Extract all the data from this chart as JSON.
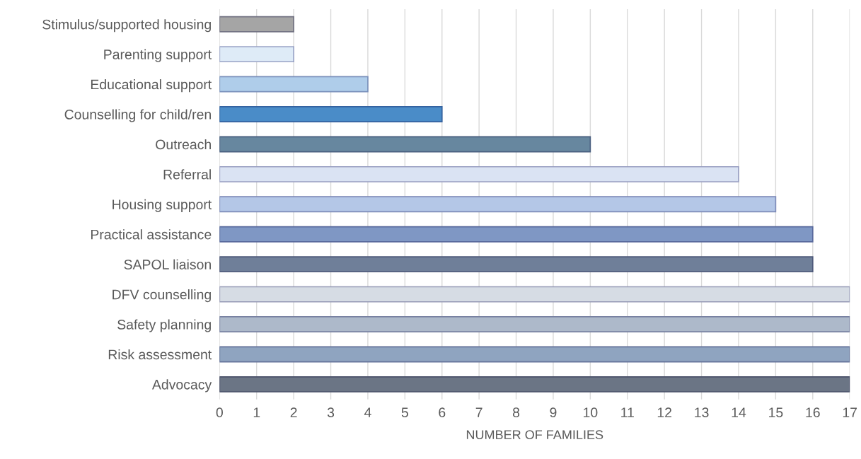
{
  "chart_data": {
    "type": "bar",
    "orientation": "horizontal",
    "xlabel": "NUMBER OF FAMILIES",
    "categories": [
      "Stimulus/supported housing",
      "Parenting support",
      "Educational support",
      "Counselling for child/ren",
      "Outreach",
      "Referral",
      "Housing support",
      "Practical assistance",
      "SAPOL liaison",
      "DFV counselling",
      "Safety planning",
      "Risk assessment",
      "Advocacy"
    ],
    "values": [
      2,
      2,
      4,
      6,
      10,
      14,
      15,
      16,
      16,
      17,
      17,
      17,
      17
    ],
    "colors": [
      "#a5a5a5",
      "#deebf7",
      "#afcdea",
      "#4a8cc8",
      "#67879f",
      "#dae3f3",
      "#b4c7e7",
      "#7f97c4",
      "#6f7f99",
      "#d6dce4",
      "#adb9ca",
      "#8fa4c0",
      "#6b7585"
    ],
    "xlim": [
      0,
      17
    ],
    "xticks": [
      0,
      1,
      2,
      3,
      4,
      5,
      6,
      7,
      8,
      9,
      10,
      11,
      12,
      13,
      14,
      15,
      16,
      17
    ],
    "grid": "x"
  }
}
